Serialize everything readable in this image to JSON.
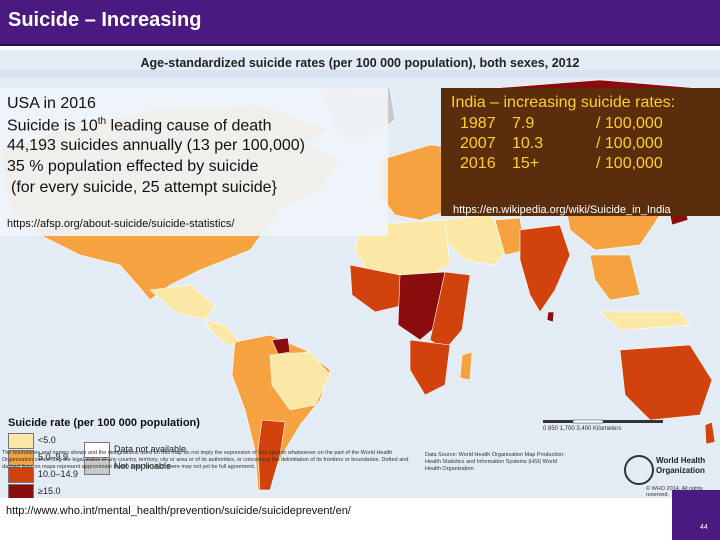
{
  "slide": {
    "title": "Suicide – Increasing",
    "page_number": "44"
  },
  "map": {
    "heading": "Age-standardized suicide rates (per 100 000 population), both sexes, 2012"
  },
  "usa_panel": {
    "line1": "USA in 2016",
    "line2_pre": "Suicide is 10",
    "line2_sup": "th",
    "line2_post": " leading cause of death",
    "line3": "44,193 suicides annually (13 per 100,000)",
    "line4": "35 % population effected by suicide",
    "line5": "(for every suicide, 25 attempt suicide}",
    "link": "https://afsp.org/about-suicide/suicide-statistics/"
  },
  "india_panel": {
    "title": "India – increasing suicide rates:",
    "rows": [
      {
        "year": "1987",
        "rate": "7.9",
        "unit": "/ 100,000"
      },
      {
        "year": "2007",
        "rate": "10.3",
        "unit": "/ 100,000"
      },
      {
        "year": "2016",
        "rate": "15+",
        "unit": "/ 100,000"
      }
    ],
    "link": "https://en.wikipedia.org/wiki/Suicide_in_India"
  },
  "legend": {
    "title": "Suicide rate (per 100 000 population)",
    "items": [
      {
        "label": "<5.0",
        "color": "#fbe7a6"
      },
      {
        "label": "5.0–9.9",
        "color": "#f7a240"
      },
      {
        "label": "10.0–14.9",
        "color": "#d2420d"
      },
      {
        "label": "≥15.0",
        "color": "#8a0d0d"
      },
      {
        "label": "Data not available",
        "color": "#ffffff"
      },
      {
        "label": "Not applicable",
        "color": "#c9c9c9"
      }
    ]
  },
  "scale_bar": {
    "label": "0   850  1,700     3,400 Kilometers"
  },
  "footer": {
    "disclaimer": "The boundaries and names shown and the designations used on this map do not imply the expression of any opinion whatsoever on the part of the World Health Organization concerning the legal status of any country, territory, city or area or of its authorities, or concerning the delimitation of its frontiers or boundaries. Dotted and dashed lines on maps represent approximate border lines for which there may not yet be full agreement.",
    "credits": "Data Source: World Health Organization Map Production: Health Statistics and Information Systems (HSI) World Health Organization",
    "who_name_1": "World Health",
    "who_name_2": "Organization",
    "copyright": "© WHO 2014. All rights reserved.",
    "link": "http://www.who.int/mental_health/prevention/suicide/suicideprevent/en/"
  }
}
